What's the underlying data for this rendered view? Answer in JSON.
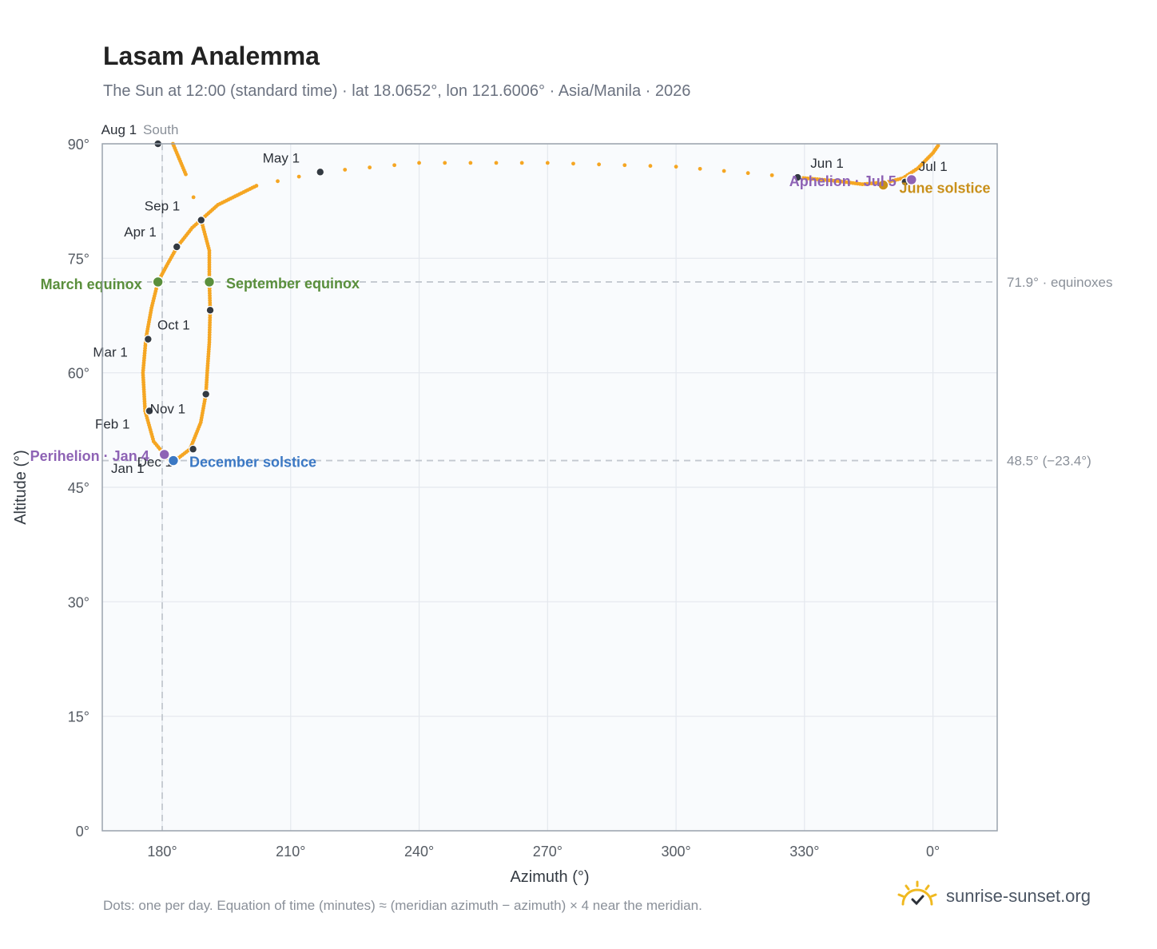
{
  "title": "Lasam Analemma",
  "subtitle": "The Sun at 12:00 (standard time) · lat 18.0652°, lon 121.6006° · Asia/Manila · 2026",
  "footnote": "Dots: one per day. Equation of time (minutes) ≈ (meridian azimuth − azimuth) × 4 near the meridian.",
  "brand": {
    "text": "sunrise-sunset.org",
    "icon": "sun-logo-icon"
  },
  "colors": {
    "curve": "#f5a623",
    "month_dot": "#333a42",
    "equinox": "#5a8f3c",
    "solstice_june": "#c9901a",
    "solstice_december": "#3b78c4",
    "apsis": "#8e63b5",
    "reference": "#c3c8cf"
  },
  "chart_data": {
    "type": "scatter",
    "title": "Lasam Analemma",
    "xlabel": "Azimuth (°)",
    "ylabel": "Altitude (°)",
    "x_ticks": [
      "180°",
      "210°",
      "240°",
      "270°",
      "300°",
      "330°",
      "0°"
    ],
    "y_ticks": [
      "0°",
      "15°",
      "30°",
      "45°",
      "60°",
      "75°",
      "90°"
    ],
    "xlim": [
      166,
      375
    ],
    "ylim": [
      0,
      90
    ],
    "grid": true,
    "x_note": "azimuth wraps past 360° to 0° at the right end",
    "meridian": {
      "azimuth": 180,
      "label": "South"
    },
    "reference_lines": [
      {
        "altitude": 71.9,
        "label": "71.9° · equinoxes"
      },
      {
        "altitude": 48.5,
        "label": "48.5° (−23.4°)"
      }
    ],
    "path_control_points": [
      {
        "az": 180.5,
        "alt": 49.3
      },
      {
        "az": 178.0,
        "alt": 51.0
      },
      {
        "az": 176.0,
        "alt": 55.0
      },
      {
        "az": 175.5,
        "alt": 60.0
      },
      {
        "az": 176.2,
        "alt": 64.5
      },
      {
        "az": 177.5,
        "alt": 68.5
      },
      {
        "az": 179.0,
        "alt": 71.9
      },
      {
        "az": 181.0,
        "alt": 74.0
      },
      {
        "az": 183.5,
        "alt": 76.5
      },
      {
        "az": 187.0,
        "alt": 79.0
      },
      {
        "az": 193.0,
        "alt": 82.0
      },
      {
        "az": 202.0,
        "alt": 84.5
      },
      {
        "az": 216.9,
        "alt": 86.3
      },
      {
        "az": 240.0,
        "alt": 87.5
      },
      {
        "az": 270.0,
        "alt": 87.5
      },
      {
        "az": 300.0,
        "alt": 87.0
      },
      {
        "az": 328.0,
        "alt": 85.6
      },
      {
        "az": 338.0,
        "alt": 85.1
      },
      {
        "az": 343.5,
        "alt": 84.7
      },
      {
        "az": 349.5,
        "alt": 85.0
      },
      {
        "az": 353.0,
        "alt": 85.5
      },
      {
        "az": 356.5,
        "alt": 86.8
      },
      {
        "az": 360.0,
        "alt": 88.8
      },
      {
        "az": 361.5,
        "alt": 90.0
      },
      {
        "brk": true
      },
      {
        "az": 182.5,
        "alt": 90.0
      },
      {
        "az": 185.5,
        "alt": 86.0
      },
      {
        "az": 189.1,
        "alt": 80.0
      },
      {
        "az": 191.0,
        "alt": 76.0
      },
      {
        "az": 191.0,
        "alt": 72.0
      },
      {
        "az": 191.2,
        "alt": 68.2
      },
      {
        "az": 191.0,
        "alt": 64.0
      },
      {
        "az": 190.5,
        "alt": 60.0
      },
      {
        "az": 190.2,
        "alt": 57.2
      },
      {
        "az": 189.0,
        "alt": 53.5
      },
      {
        "az": 186.5,
        "alt": 50.0
      },
      {
        "az": 183.0,
        "alt": 48.5
      },
      {
        "az": 181.0,
        "alt": 48.8
      },
      {
        "az": 180.5,
        "alt": 49.3
      }
    ],
    "month_points": [
      {
        "label": "Jan 1",
        "az": 180.0,
        "alt": 49.2,
        "lx": -64,
        "ly": 22
      },
      {
        "label": "Feb 1",
        "az": 177.0,
        "alt": 55.0,
        "lx": -68,
        "ly": 22
      },
      {
        "label": "Mar 1",
        "az": 176.7,
        "alt": 64.4,
        "lx": -69,
        "ly": 22
      },
      {
        "label": "Apr 1",
        "az": 183.4,
        "alt": 76.5,
        "lx": -66,
        "ly": -13
      },
      {
        "label": "May 1",
        "az": 216.9,
        "alt": 86.3,
        "lx": -72,
        "ly": -12
      },
      {
        "label": "Jun 1",
        "az": 328.4,
        "alt": 85.6,
        "lx": 16,
        "ly": -12
      },
      {
        "label": "Jul 1",
        "az": 353.5,
        "alt": 85.0,
        "lx": 17,
        "ly": -14
      },
      {
        "label": "Aug 1",
        "az": 179.0,
        "alt": 90.0,
        "lx": -71,
        "ly": -12
      },
      {
        "label": "Sep 1",
        "az": 189.1,
        "alt": 80.0,
        "lx": -71,
        "ly": -12
      },
      {
        "label": "Oct 1",
        "az": 191.2,
        "alt": 68.2,
        "lx": -66,
        "ly": 24
      },
      {
        "label": "Nov 1",
        "az": 190.2,
        "alt": 57.2,
        "lx": -70,
        "ly": 24
      },
      {
        "label": "Dec 1",
        "az": 187.2,
        "alt": 50.0,
        "lx": -70,
        "ly": 22
      }
    ],
    "events": [
      {
        "label": "March equinox",
        "az": 179.0,
        "alt": 71.9,
        "color": "#5a8f3c",
        "anchor": "end",
        "lx": -20,
        "ly": 9
      },
      {
        "label": "September equinox",
        "az": 191.0,
        "alt": 71.9,
        "color": "#5a8f3c",
        "anchor": "start",
        "lx": 21,
        "ly": 8
      },
      {
        "label": "June solstice",
        "az": 348.4,
        "alt": 84.6,
        "color": "#c9901a",
        "anchor": "start",
        "lx": 20,
        "ly": 10
      },
      {
        "label": "December solstice",
        "az": 182.6,
        "alt": 48.5,
        "color": "#3b78c4",
        "anchor": "start",
        "lx": 20,
        "ly": 8
      },
      {
        "label": "Perihelion · Jan 4",
        "az": 180.5,
        "alt": 49.3,
        "color": "#8e63b5",
        "anchor": "end",
        "lx": -19,
        "ly": 8
      },
      {
        "label": "Aphelion · Jul 5",
        "az": 355.0,
        "alt": 85.3,
        "color": "#8e63b5",
        "anchor": "end",
        "lx": -19,
        "ly": 8
      }
    ]
  }
}
